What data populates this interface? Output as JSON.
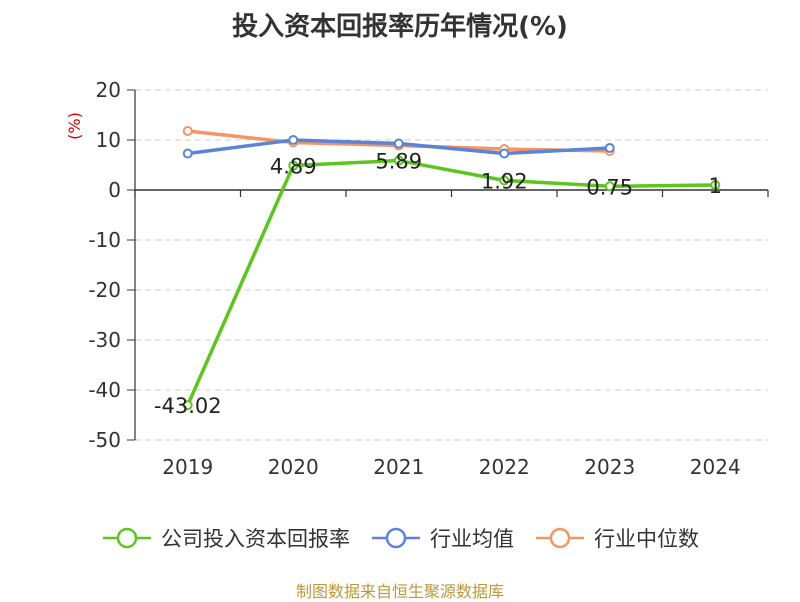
{
  "colors": {
    "company": "#5cc61f",
    "industry_avg": "#5b84d6",
    "industry_median": "#f59561",
    "unit_label": "#d40000",
    "source": "#c0973b",
    "grid": "#cccccc",
    "axis": "#333333"
  },
  "chart_data": {
    "type": "line",
    "title": "投入资本回报率历年情况(%)",
    "ylabel": "(%)",
    "x": [
      "2019",
      "2020",
      "2021",
      "2022",
      "2023",
      "2024"
    ],
    "ylim": [
      -50,
      20
    ],
    "yticks": [
      20,
      10,
      0,
      -10,
      -20,
      -30,
      -40,
      -50
    ],
    "grid": "horizontal dashed",
    "legend_position": "bottom",
    "series": [
      {
        "key": "company",
        "name": "公司投入资本回报率",
        "values": [
          -43.02,
          4.89,
          5.89,
          1.92,
          0.75,
          1
        ],
        "labels": [
          "-43.02",
          "4.89",
          "5.89",
          "1.92",
          "0.75",
          "1"
        ]
      },
      {
        "key": "industry_avg",
        "name": "行业均值",
        "values": [
          7.3,
          10.0,
          9.3,
          7.3,
          8.4,
          null
        ]
      },
      {
        "key": "industry_median",
        "name": "行业中位数",
        "values": [
          11.8,
          9.5,
          8.9,
          8.2,
          7.8,
          null
        ]
      }
    ]
  },
  "source": "制图数据来自恒生聚源数据库"
}
